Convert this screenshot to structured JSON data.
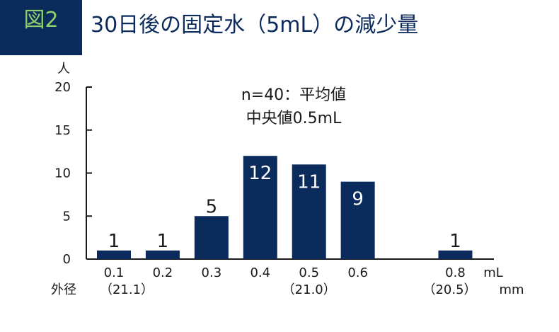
{
  "header": {
    "figure_label": "図2",
    "title": "30日後の固定水（5mL）の減少量"
  },
  "colors": {
    "header_bg": "#0b2b5c",
    "header_label": "#8ed06a",
    "title": "#0b2b5c",
    "bar": "#0b2b5c",
    "bar_label_inside": "#ffffff",
    "text": "#1a1a1a"
  },
  "chart_data": {
    "type": "bar",
    "ylabel": "人",
    "ylim": [
      0,
      20
    ],
    "yticks": [
      0,
      5,
      10,
      15,
      20
    ],
    "xunit": "mL",
    "categories": [
      "0.1",
      "0.2",
      "0.3",
      "0.4",
      "0.5",
      "0.6",
      "0.8"
    ],
    "x": [
      0.1,
      0.2,
      0.3,
      0.4,
      0.5,
      0.6,
      0.8
    ],
    "values": [
      1,
      1,
      5,
      12,
      11,
      9,
      1
    ],
    "data_labels": [
      "1",
      "1",
      "5",
      "12",
      "11",
      "9",
      "1"
    ],
    "annotation_lines": [
      "n=40：平均値",
      "中央値0.5mL"
    ],
    "outer_diameter": {
      "prefix": "外径",
      "marks": [
        {
          "x": 0.1,
          "label": "（21.1）"
        },
        {
          "x": 0.5,
          "label": "（21.0）"
        },
        {
          "x": 0.8,
          "label": "（20.5）"
        }
      ],
      "unit": "mm"
    },
    "grid": false,
    "legend": "none"
  }
}
